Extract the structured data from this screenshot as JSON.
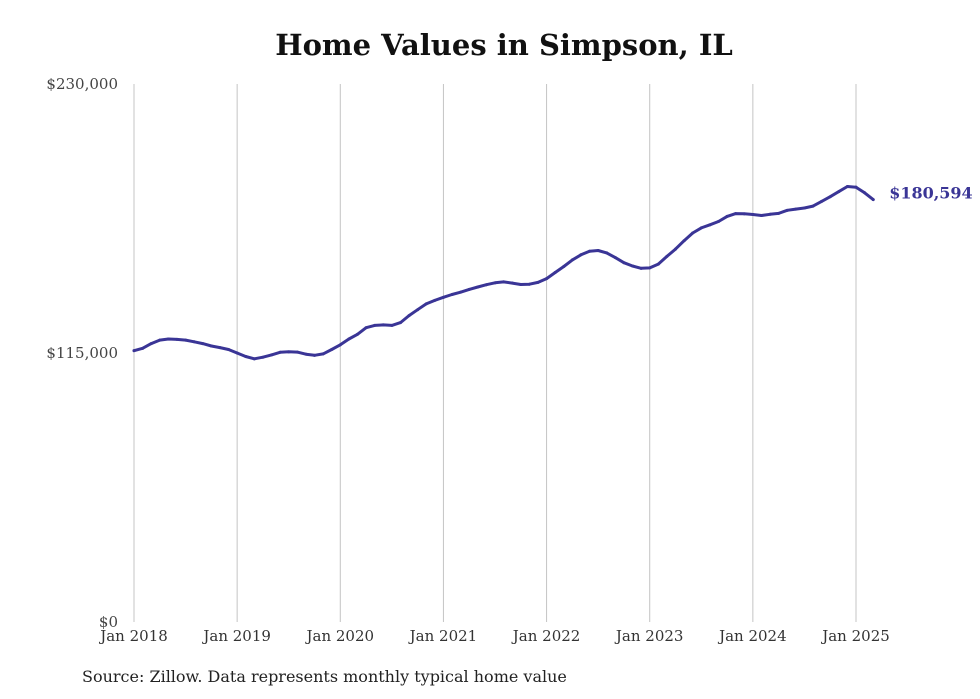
{
  "chart_data": {
    "type": "line",
    "title": "Home Values in Simpson, IL",
    "xlabel": "",
    "ylabel": "",
    "ylim": [
      0,
      230000
    ],
    "xlim": [
      "2018-01",
      "2025-03"
    ],
    "y_ticks": [
      0,
      115000,
      230000
    ],
    "y_tick_labels": [
      "$0",
      "$115,000",
      "$230,000"
    ],
    "x_ticks": [
      "2018-01",
      "2019-01",
      "2020-01",
      "2021-01",
      "2022-01",
      "2023-01",
      "2024-01",
      "2025-01"
    ],
    "x_tick_labels": [
      "Jan 2018",
      "Jan 2019",
      "Jan 2020",
      "Jan 2021",
      "Jan 2022",
      "Jan 2023",
      "Jan 2024",
      "Jan 2025"
    ],
    "grid": "vertical gridlines at each January",
    "legend": "none",
    "series": [
      {
        "color": "#3a3596",
        "end_label": "$180,594",
        "x": [
          "2018-01",
          "2018-02",
          "2018-03",
          "2018-04",
          "2018-05",
          "2018-06",
          "2018-07",
          "2018-08",
          "2018-09",
          "2018-10",
          "2018-11",
          "2018-12",
          "2019-01",
          "2019-02",
          "2019-03",
          "2019-04",
          "2019-05",
          "2019-06",
          "2019-07",
          "2019-08",
          "2019-09",
          "2019-10",
          "2019-11",
          "2019-12",
          "2020-01",
          "2020-02",
          "2020-03",
          "2020-04",
          "2020-05",
          "2020-06",
          "2020-07",
          "2020-08",
          "2020-09",
          "2020-10",
          "2020-11",
          "2020-12",
          "2021-01",
          "2021-02",
          "2021-03",
          "2021-04",
          "2021-05",
          "2021-06",
          "2021-07",
          "2021-08",
          "2021-09",
          "2021-10",
          "2021-11",
          "2021-12",
          "2022-01",
          "2022-02",
          "2022-03",
          "2022-04",
          "2022-05",
          "2022-06",
          "2022-07",
          "2022-08",
          "2022-09",
          "2022-10",
          "2022-11",
          "2022-12",
          "2023-01",
          "2023-02",
          "2023-03",
          "2023-04",
          "2023-05",
          "2023-06",
          "2023-07",
          "2023-08",
          "2023-09",
          "2023-10",
          "2023-11",
          "2023-12",
          "2024-01",
          "2024-02",
          "2024-03",
          "2024-04",
          "2024-05",
          "2024-06",
          "2024-07",
          "2024-08",
          "2024-09",
          "2024-10",
          "2024-11",
          "2024-12",
          "2025-01",
          "2025-02",
          "2025-03"
        ],
        "values": [
          116000,
          117000,
          119000,
          120500,
          121000,
          120800,
          120500,
          119800,
          119000,
          118000,
          117300,
          116500,
          115000,
          113500,
          112500,
          113200,
          114200,
          115300,
          115500,
          115400,
          114500,
          114000,
          114600,
          116500,
          118500,
          121000,
          123000,
          125800,
          126800,
          127000,
          126800,
          128000,
          131000,
          133500,
          136000,
          137500,
          138800,
          140000,
          141000,
          142200,
          143200,
          144200,
          145000,
          145400,
          144900,
          144300,
          144400,
          145200,
          146800,
          149400,
          152000,
          154800,
          157000,
          158500,
          158800,
          157800,
          155800,
          153600,
          152200,
          151200,
          151400,
          153000,
          156300,
          159400,
          163000,
          166300,
          168500,
          169800,
          171200,
          173400,
          174600,
          174500,
          174200,
          173800,
          174300,
          174700,
          176000,
          176500,
          177000,
          177800,
          179800,
          181800,
          184000,
          186200,
          185900,
          183500,
          180594
        ]
      }
    ],
    "source_note": "Source: Zillow. Data represents monthly typical home value"
  }
}
